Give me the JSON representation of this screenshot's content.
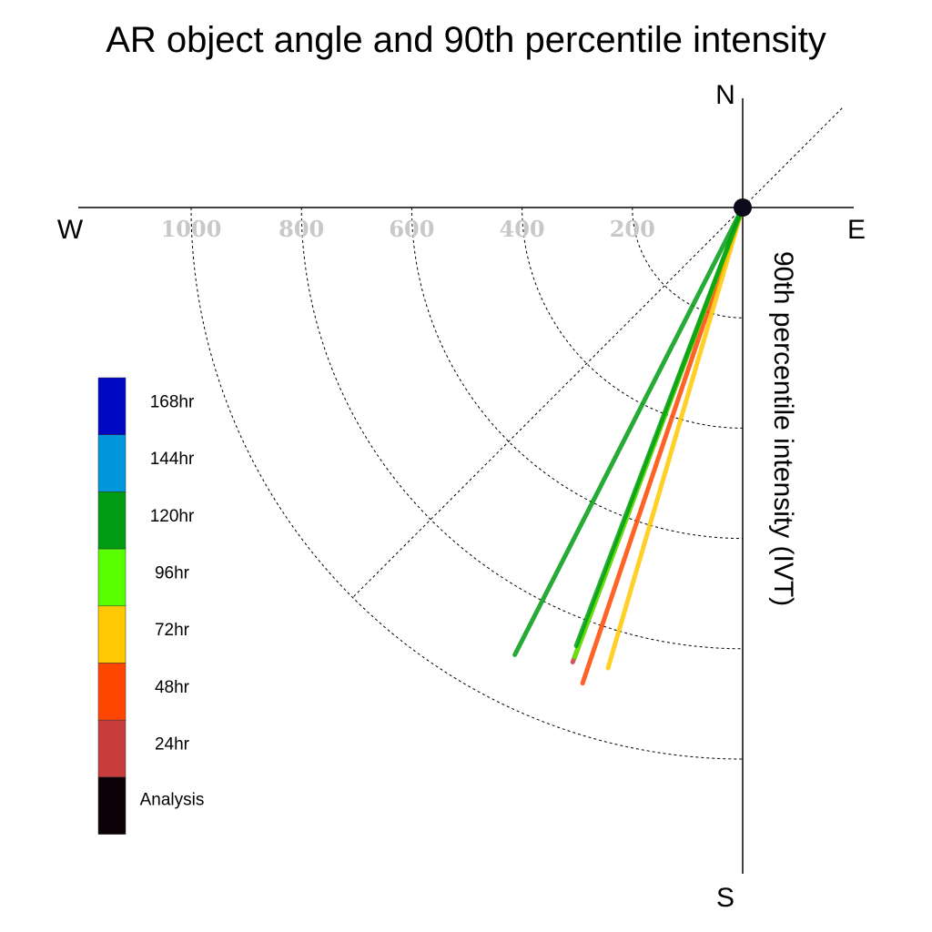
{
  "chart_data": {
    "type": "polar-vector",
    "title": "AR object angle and 90th percentile intensity",
    "ylabel": "90th percentile intensity (IVT)",
    "compass": {
      "north": "N",
      "south": "S",
      "east": "E",
      "west": "W"
    },
    "radial_ticks": [
      "200",
      "400",
      "600",
      "800",
      "1000"
    ],
    "radial_values": [
      200,
      400,
      600,
      800,
      1000
    ],
    "rlim": [
      0,
      1200
    ],
    "grid": "dotted",
    "legend_placement": "left",
    "legend": [
      {
        "label": "168hr",
        "color": "#0008c4"
      },
      {
        "label": "144hr",
        "color": "#0096dc"
      },
      {
        "label": "120hr",
        "color": "#009c14"
      },
      {
        "label": "96hr",
        "color": "#58ff00"
      },
      {
        "label": "72hr",
        "color": "#ffc800"
      },
      {
        "label": "48hr",
        "color": "#ff4600"
      },
      {
        "label": "24hr",
        "color": "#c83c3c"
      },
      {
        "label": "Analysis",
        "color": "#0a0006"
      }
    ],
    "series": [
      {
        "name": "Analysis",
        "angle_deg": 200.5,
        "intensity": 870,
        "color": "#0a0006"
      },
      {
        "name": "24hr",
        "angle_deg": 200.5,
        "intensity": 880,
        "color": "#c83c3c"
      },
      {
        "name": "48hr",
        "angle_deg": 198.6,
        "intensity": 910,
        "color": "#ff4600"
      },
      {
        "name": "72hr",
        "angle_deg": 196.3,
        "intensity": 870,
        "color": "#ffc800"
      },
      {
        "name": "96hr",
        "angle_deg": 200.5,
        "intensity": 870,
        "color": "#58ff00"
      },
      {
        "name": "120hr",
        "angle_deg": 207.0,
        "intensity": 910,
        "color": "#009c14"
      },
      {
        "name": "120hr",
        "angle_deg": 200.8,
        "intensity": 850,
        "color": "#009c14"
      }
    ]
  }
}
